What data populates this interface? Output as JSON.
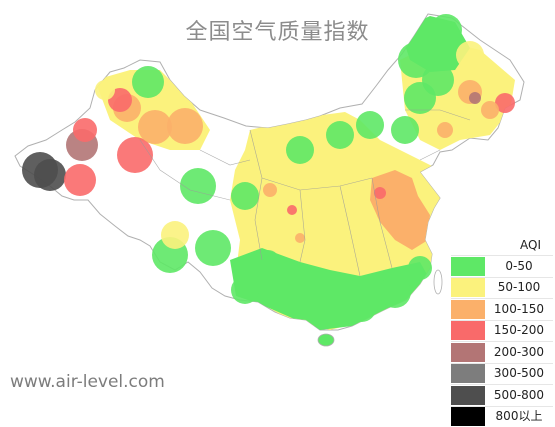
{
  "title": "全国空气质量指数",
  "watermark": "www.air-level.com",
  "legend": {
    "title": "AQI",
    "items": [
      {
        "label": "0-50",
        "color": "#5ee866"
      },
      {
        "label": "50-100",
        "color": "#fbf27d"
      },
      {
        "label": "100-150",
        "color": "#fbb06a"
      },
      {
        "label": "150-200",
        "color": "#f96a6a"
      },
      {
        "label": "200-300",
        "color": "#b37575"
      },
      {
        "label": "300-500",
        "color": "#7d7d7d"
      },
      {
        "label": "500-800",
        "color": "#4e4e4e"
      },
      {
        "label": "800以上",
        "color": "#000000"
      }
    ]
  },
  "map": {
    "region": "China",
    "coverage": "mostly 50-100 (yellow) with scattered 0-50 (green) zones in the south, southwest, northeast and northwest; 100-150 (orange) over North China Plain / Henan-Shandong-Anhui-Jiangsu; 150-200 and 200-300 patches in far northwest and northeast; 300-800 circles at far western tip"
  }
}
